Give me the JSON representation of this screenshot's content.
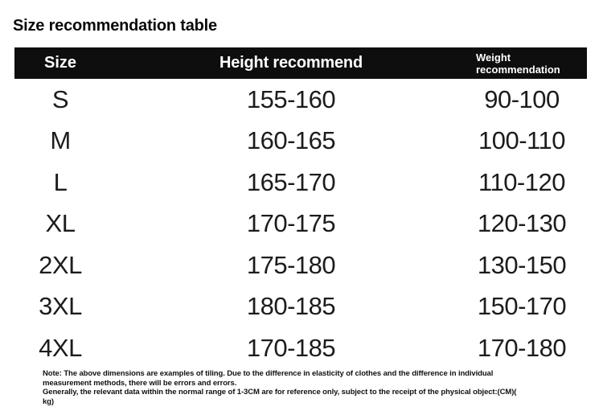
{
  "page": {
    "title": "Size recommendation table"
  },
  "colors": {
    "background": "#ffffff",
    "header_bg": "#0e0e0e",
    "header_text": "#ffffff",
    "body_text": "#1c1c1c",
    "note_text": "#111111"
  },
  "table": {
    "header": {
      "columns": [
        "Size",
        "Height recommend",
        "Weight recommendation"
      ]
    },
    "rows": [
      {
        "size": "S",
        "height": "155-160",
        "weight": "90-100"
      },
      {
        "size": "M",
        "height": "160-165",
        "weight": "100-110"
      },
      {
        "size": "L",
        "height": "165-170",
        "weight": "110-120"
      },
      {
        "size": "XL",
        "height": "170-175",
        "weight": "120-130"
      },
      {
        "size": "2XL",
        "height": "175-180",
        "weight": "130-150"
      },
      {
        "size": "3XL",
        "height": "180-185",
        "weight": "150-170"
      },
      {
        "size": "4XL",
        "height": "170-185",
        "weight": "170-180"
      }
    ]
  },
  "note": {
    "lines": [
      "Note: The above dimensions are examples of tiling. Due to the difference in elasticity of clothes and the difference in individual",
      "measurement methods, there will be errors and errors.",
      "Generally, the relevant data within the normal range of 1-3CM are for reference only, subject to the receipt of the physical object:(CM)(",
      "kg)"
    ]
  }
}
